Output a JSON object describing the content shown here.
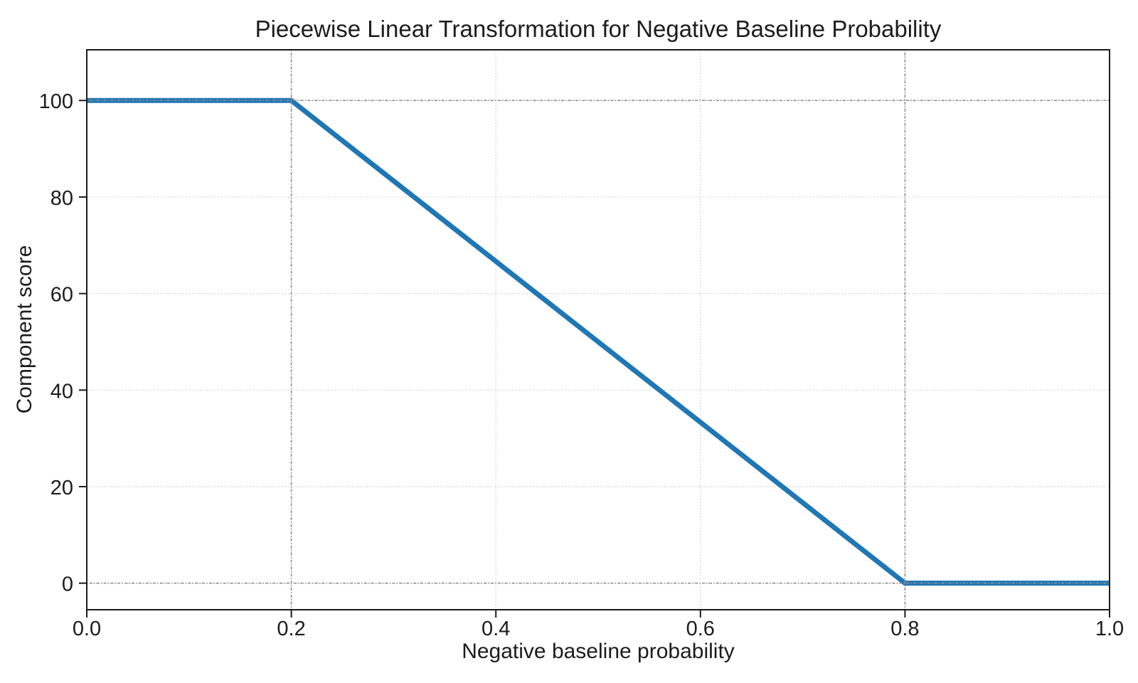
{
  "chart_data": {
    "type": "line",
    "title": "Piecewise Linear Transformation for Negative Baseline Probability",
    "xlabel": "Negative baseline probability",
    "ylabel": "Component score",
    "series": [
      {
        "name": "piecewise-linear-transform",
        "x": [
          0.0,
          0.2,
          0.8,
          1.0
        ],
        "y": [
          100,
          100,
          0,
          0
        ],
        "color": "#1f77b4",
        "line_width": 7
      }
    ],
    "x_ticks": [
      0.0,
      0.2,
      0.4,
      0.6,
      0.8,
      1.0
    ],
    "x_tick_labels": [
      "0.0",
      "0.2",
      "0.4",
      "0.6",
      "0.8",
      "1.0"
    ],
    "y_ticks": [
      0,
      20,
      40,
      60,
      80,
      100
    ],
    "y_tick_labels": [
      "0",
      "20",
      "40",
      "60",
      "80",
      "100"
    ],
    "xlim": [
      0.0,
      1.0
    ],
    "ylim": [
      -5.5,
      110.5
    ],
    "grid": {
      "visible": true,
      "style": "dotted",
      "color": "#c9c9c9"
    },
    "reference_lines": {
      "x": [
        0.2,
        0.8
      ],
      "y": [
        0,
        100
      ],
      "style": "dotted",
      "color": "#8f8f8f"
    },
    "legend": {
      "visible": false
    }
  }
}
